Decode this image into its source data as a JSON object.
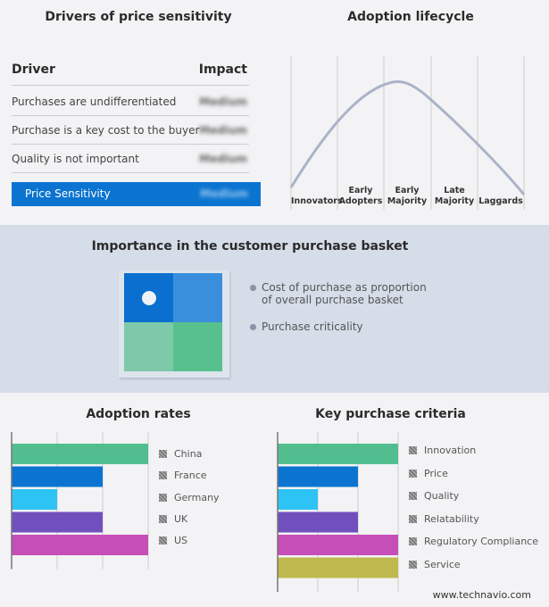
{
  "drivers": {
    "title": "Drivers of price sensitivity",
    "col_driver": "Driver",
    "col_impact": "Impact",
    "rows": [
      {
        "driver": "Purchases are undifferentiated",
        "impact": "Medium"
      },
      {
        "driver": "Purchase is a key cost to the buyer",
        "impact": "Medium"
      },
      {
        "driver": "Quality is not important",
        "impact": "Medium"
      }
    ],
    "summary": {
      "label": "Price Sensitivity",
      "impact": "Medium"
    },
    "accent": "#0a74d0"
  },
  "lifecycle": {
    "title": "Adoption lifecycle",
    "stages": [
      [
        "Innovators"
      ],
      [
        "Early",
        "Adopters"
      ],
      [
        "Early",
        "Majority"
      ],
      [
        "Late",
        "Majority"
      ],
      [
        "Laggards"
      ]
    ]
  },
  "basket": {
    "title": "Importance in the customer purchase basket",
    "items": [
      "Cost of purchase as proportion of overall purchase basket",
      "Purchase criticality"
    ],
    "colors": [
      "#0a6fce",
      "#3a8fdc",
      "#7dc9a9",
      "#58c08d"
    ]
  },
  "chart_data": [
    {
      "type": "bar",
      "orientation": "horizontal",
      "title": "Adoption rates",
      "categories": [
        "China",
        "France",
        "Germany",
        "UK",
        "US"
      ],
      "values": [
        3,
        2,
        1,
        2,
        3
      ],
      "xlim": [
        0,
        3
      ],
      "grid": true,
      "legend": "right",
      "colors": [
        "#52be8f",
        "#0a74d0",
        "#2ec3f5",
        "#6f50bd",
        "#c64eb8"
      ]
    },
    {
      "type": "bar",
      "orientation": "horizontal",
      "title": "Key purchase criteria",
      "categories": [
        "Innovation",
        "Price",
        "Quality",
        "Relatability",
        "Regulatory Compliance",
        "Service"
      ],
      "values": [
        3,
        2,
        1,
        2,
        3,
        3
      ],
      "xlim": [
        0,
        3
      ],
      "grid": true,
      "legend": "right",
      "colors": [
        "#52be8f",
        "#0a74d0",
        "#2ec3f5",
        "#6f50bd",
        "#c64eb8",
        "#bfb84e"
      ]
    }
  ],
  "footer": "www.technavio.com"
}
